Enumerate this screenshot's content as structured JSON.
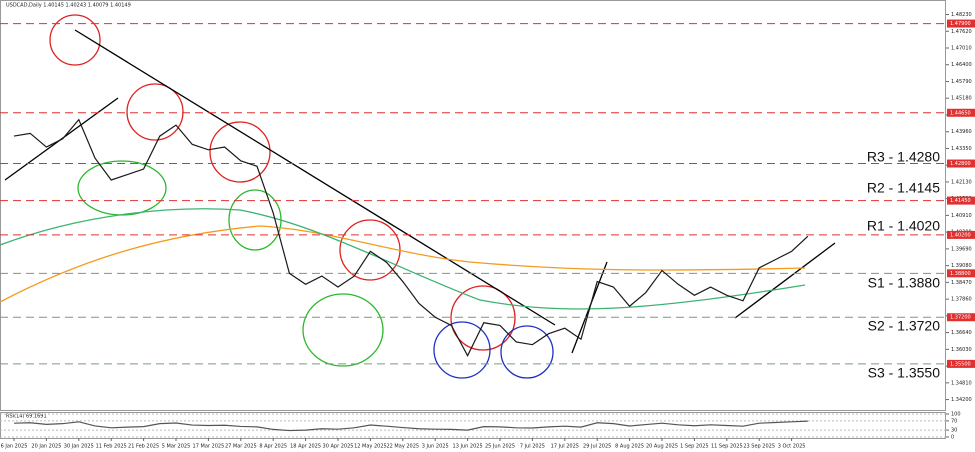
{
  "chart_data": [
    {
      "type": "line",
      "title": "USDCAD,Daily  1.40145 1.40243 1.40079 1.40149",
      "color": "#1a1a1a",
      "categories": [
        "6 Jan 2025",
        null,
        "20 Jan 2025",
        null,
        "30 Jan 2025",
        null,
        "11 Feb 2025",
        null,
        "21 Feb 2025",
        null,
        "5 Mar 2025",
        null,
        "17 Mar 2025",
        null,
        "27 Mar 2025",
        null,
        "8 Apr 2025",
        null,
        "18 Apr 2025",
        null,
        "30 Apr 2025",
        null,
        "12 May 2025",
        null,
        "22 May 2025",
        null,
        "3 Jun 2025",
        null,
        "13 Jun 2025",
        null,
        "25 Jun 2025",
        null,
        "7 Jul 2025",
        null,
        "17 Jul 2025",
        null,
        "29 Jul 2025",
        null,
        "8 Aug 2025",
        null,
        "20 Aug 2025",
        null,
        "1 Sep 2025",
        null,
        "11 Sep 2025",
        null,
        "23 Sep 2025",
        null,
        "3 Oct 2025",
        null
      ],
      "values": [
        1.438,
        1.439,
        1.434,
        1.437,
        1.444,
        1.43,
        1.422,
        1.424,
        1.426,
        1.438,
        1.442,
        1.435,
        1.433,
        1.434,
        1.429,
        1.427,
        1.41,
        1.388,
        1.384,
        1.387,
        1.383,
        1.387,
        1.396,
        1.392,
        1.385,
        1.377,
        1.372,
        1.369,
        1.358,
        1.37,
        1.369,
        1.363,
        1.362,
        1.366,
        1.368,
        1.364,
        1.385,
        1.383,
        1.376,
        1.381,
        1.389,
        1.384,
        1.38,
        1.383,
        1.38,
        1.378,
        1.39,
        1.393,
        1.396,
        1.4015
      ],
      "ylim": [
        1.3382,
        1.4854
      ],
      "yticks": [
        {
          "value": 1.4823,
          "label": "1.48230"
        },
        {
          "value": 1.4762,
          "label": "1.47620"
        },
        {
          "value": 1.4701,
          "label": "1.47010"
        },
        {
          "value": 1.464,
          "label": "1.46400"
        },
        {
          "value": 1.4579,
          "label": "1.45790"
        },
        {
          "value": 1.4518,
          "label": "1.45180"
        },
        {
          "value": 1.4457,
          "label": "1.44570"
        },
        {
          "value": 1.4396,
          "label": "1.43960"
        },
        {
          "value": 1.4335,
          "label": "1.43350"
        },
        {
          "value": 1.4274,
          "label": "1.42740"
        },
        {
          "value": 1.4213,
          "label": "1.42130"
        },
        {
          "value": 1.4152,
          "label": "1.41520"
        },
        {
          "value": 1.4091,
          "label": "1.40910"
        },
        {
          "value": 1.403,
          "label": "1.40300"
        },
        {
          "value": 1.3969,
          "label": "1.39690"
        },
        {
          "value": 1.3908,
          "label": "1.39080"
        },
        {
          "value": 1.3847,
          "label": "1.38470"
        },
        {
          "value": 1.3786,
          "label": "1.37860"
        },
        {
          "value": 1.3725,
          "label": "1.37250"
        },
        {
          "value": 1.3664,
          "label": "1.36640"
        },
        {
          "value": 1.3603,
          "label": "1.36030"
        },
        {
          "value": 1.3542,
          "label": "1.35420"
        },
        {
          "value": 1.3481,
          "label": "1.34810"
        },
        {
          "value": 1.342,
          "label": "1.34200"
        }
      ],
      "levels": [
        {
          "value": 1.479,
          "label": "1.47900"
        },
        {
          "value": 1.4465,
          "label": "1.44650"
        },
        {
          "value": 1.428,
          "label": "1.42800"
        },
        {
          "value": 1.4145,
          "label": "1.41450"
        },
        {
          "value": 1.402,
          "label": "1.40200"
        },
        {
          "value": 1.388,
          "label": "1.38800"
        },
        {
          "value": 1.372,
          "label": "1.37200"
        },
        {
          "value": 1.355,
          "label": "1.35500"
        }
      ],
      "level_colors": [
        "#e03030",
        "#e03030",
        "#e03030",
        "#e03030",
        "#e03030",
        "#7a9a7a",
        "#7a9a7a",
        "#7a9a7a"
      ],
      "annotations": [
        "R3 - 1.4280",
        "R2 - 1.4145",
        "R1 - 1.4020",
        "S1 - 1.3880",
        "S2 - 1.3720",
        "S3 - 1.3550"
      ]
    },
    {
      "type": "line",
      "title": "RSI(14) 69.1691",
      "color": "#555555",
      "values": [
        60,
        62,
        55,
        58,
        66,
        48,
        40,
        43,
        45,
        58,
        61,
        52,
        50,
        51,
        46,
        44,
        33,
        28,
        30,
        36,
        34,
        40,
        52,
        47,
        41,
        36,
        34,
        33,
        30,
        45,
        44,
        40,
        39,
        44,
        47,
        43,
        62,
        58,
        48,
        54,
        60,
        53,
        49,
        53,
        50,
        47,
        60,
        63,
        66,
        69.1691
      ],
      "ylim": [
        0,
        100
      ],
      "yticks": [
        0,
        30,
        70,
        100
      ]
    }
  ]
}
